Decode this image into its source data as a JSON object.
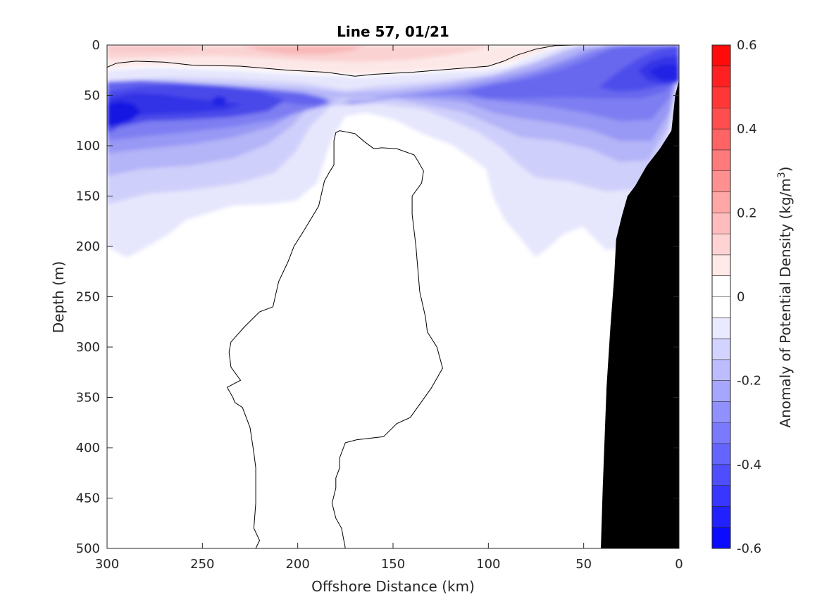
{
  "chart_data": {
    "type": "contour",
    "title": "Line 57, 01/21",
    "xlabel": "Offshore Distance (km)",
    "ylabel": "Depth (m)",
    "xlim": [
      300,
      0
    ],
    "ylim": [
      0,
      500
    ],
    "x_reversed": true,
    "y_reversed": true,
    "xticks": [
      300,
      250,
      200,
      150,
      100,
      50,
      0
    ],
    "yticks": [
      0,
      50,
      100,
      150,
      200,
      250,
      300,
      350,
      400,
      450,
      500
    ],
    "colorbar": {
      "label": "Anomaly of Potential Density (kg/m³)",
      "label_prefix": "Anomaly of Potential Density (kg/m",
      "label_superscript": "3",
      "label_suffix": ")",
      "clim": [
        -0.6,
        0.6
      ],
      "step": 0.05,
      "ticks": [
        0.6,
        0.4,
        0.2,
        0,
        -0.2,
        -0.4,
        -0.6
      ],
      "tick_labels": [
        "0.6",
        "0.4",
        "0.2",
        "0",
        "-0.2",
        "-0.4",
        "-0.6"
      ],
      "negative_color": "#0000ff",
      "positive_color": "#ff0000",
      "zero_color": "#ffffff"
    },
    "zero_contour_lines": [
      [
        [
          300,
          22
        ],
        [
          295,
          18
        ],
        [
          285,
          16
        ],
        [
          270,
          17
        ],
        [
          255,
          20
        ],
        [
          230,
          21
        ],
        [
          205,
          25
        ],
        [
          185,
          27
        ],
        [
          170,
          31
        ],
        [
          160,
          29
        ],
        [
          140,
          27
        ],
        [
          120,
          24
        ],
        [
          100,
          21
        ],
        [
          92,
          16
        ],
        [
          85,
          10
        ],
        [
          75,
          4
        ],
        [
          65,
          0.5
        ],
        [
          55,
          0
        ]
      ],
      [
        [
          175,
          500
        ],
        [
          176,
          490
        ],
        [
          177,
          480
        ],
        [
          180,
          470
        ],
        [
          182,
          455
        ],
        [
          180,
          440
        ],
        [
          180,
          430
        ],
        [
          178,
          420
        ],
        [
          178,
          410
        ],
        [
          176,
          400
        ],
        [
          175,
          395
        ],
        [
          169,
          392
        ],
        [
          155,
          389
        ],
        [
          148,
          376
        ],
        [
          141,
          370
        ],
        [
          130,
          341
        ],
        [
          124,
          321
        ],
        [
          127,
          300
        ],
        [
          132,
          285
        ],
        [
          133,
          270
        ],
        [
          136,
          245
        ],
        [
          138,
          200
        ],
        [
          140,
          168
        ],
        [
          140,
          150
        ],
        [
          135,
          137
        ],
        [
          134,
          125
        ],
        [
          137,
          115
        ],
        [
          139,
          109
        ],
        [
          148,
          103
        ],
        [
          156,
          102
        ],
        [
          160,
          103
        ],
        [
          165,
          96
        ],
        [
          170,
          88
        ],
        [
          178,
          85
        ],
        [
          180,
          87
        ],
        [
          181,
          95
        ],
        [
          181,
          110
        ],
        [
          181,
          119
        ],
        [
          183,
          125
        ],
        [
          186,
          135
        ],
        [
          189,
          160
        ],
        [
          197,
          185
        ],
        [
          202,
          200
        ],
        [
          205,
          215
        ],
        [
          210,
          235
        ],
        [
          213,
          260
        ],
        [
          220,
          265
        ],
        [
          228,
          280
        ],
        [
          235,
          295
        ],
        [
          236,
          305
        ],
        [
          235,
          320
        ],
        [
          230,
          333
        ],
        [
          237,
          340
        ],
        [
          234,
          350
        ],
        [
          233,
          355
        ],
        [
          229,
          360
        ],
        [
          227,
          370
        ],
        [
          225,
          380
        ],
        [
          223,
          405
        ],
        [
          222,
          420
        ],
        [
          222,
          455
        ],
        [
          223,
          480
        ],
        [
          220,
          492
        ],
        [
          222,
          500
        ],
        [
          255,
          500
        ]
      ],
      [
        [
          37,
          500
        ],
        [
          34,
          492
        ],
        [
          36,
          483
        ],
        [
          37,
          474
        ],
        [
          38,
          468
        ],
        [
          36,
          460
        ],
        [
          36,
          455
        ],
        [
          34,
          448
        ],
        [
          32,
          447
        ]
      ]
    ],
    "bathymetry": [
      [
        0,
        35
      ],
      [
        2,
        50
      ],
      [
        4,
        85
      ],
      [
        10,
        103
      ],
      [
        17,
        120
      ],
      [
        23,
        140
      ],
      [
        27,
        150
      ],
      [
        30,
        170
      ],
      [
        33,
        193
      ],
      [
        34,
        230
      ],
      [
        36,
        280
      ],
      [
        38,
        340
      ],
      [
        39,
        390
      ],
      [
        40,
        440
      ],
      [
        41,
        500
      ],
      [
        0,
        500
      ]
    ],
    "bathymetry_color": "#000000"
  }
}
